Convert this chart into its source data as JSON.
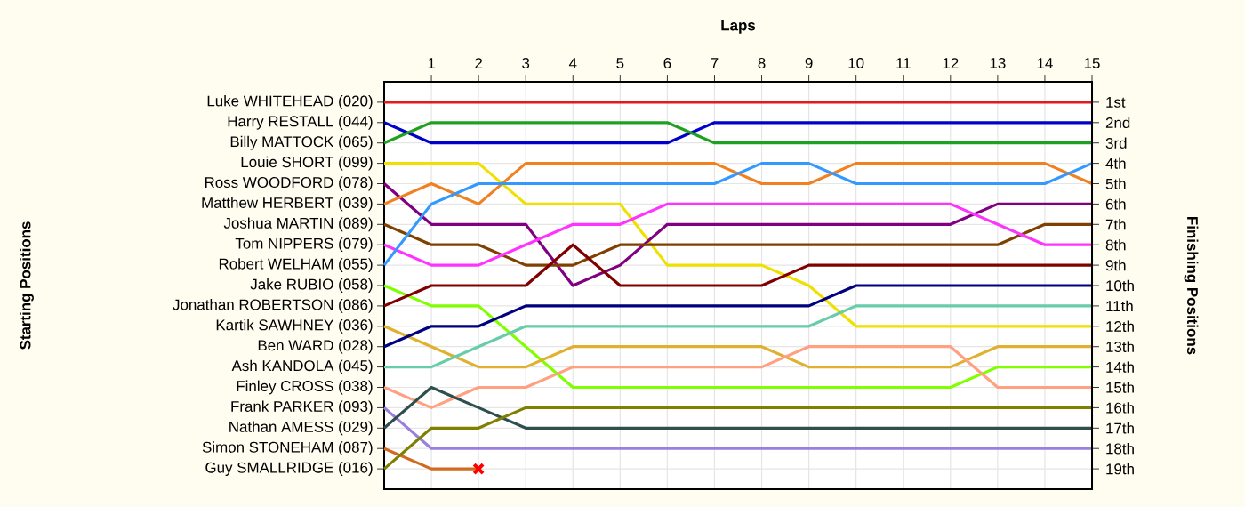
{
  "chart_data": {
    "type": "line",
    "xlabel": "Laps",
    "y2label": "Finishing Positions",
    "x": [
      0,
      1,
      2,
      3,
      4,
      5,
      6,
      7,
      8,
      9,
      10,
      11,
      12,
      13,
      14,
      15
    ],
    "xlim": [
      0,
      15
    ],
    "xticks": [
      1,
      2,
      3,
      4,
      5,
      6,
      7,
      8,
      9,
      10,
      11,
      12,
      13,
      14,
      15
    ],
    "annotations": [
      "Luke WHITEHEAD (020)",
      "Harry RESTALL (044)",
      "Billy MATTOCK (065)",
      "Louie SHORT (099)",
      "Ross WOODFORD (078)",
      "Matthew HERBERT (039)",
      "Joshua MARTIN (089)",
      "Tom NIPPERS (079)",
      "Robert WELHAM (055)",
      "Jake RUBIO (058)",
      "Jonathan ROBERTSON (086)",
      "Kartik SAWHNEY (036)",
      "Ben WARD (028)",
      "Ash KANDOLA (045)",
      "Finley CROSS (038)",
      "Frank PARKER (093)",
      "Nathan AMESS (029)",
      "Simon STONEHAM (087)",
      "Guy SMALLRIDGE (016)",
      "Starting Positions"
    ],
    "y2lim": [
      20,
      0
    ],
    "y2ticks": [
      {
        "value": 1,
        "label": "1st"
      },
      {
        "value": 2,
        "label": "2nd"
      },
      {
        "value": 3,
        "label": "3rd"
      },
      {
        "value": 4,
        "label": "4th"
      },
      {
        "value": 5,
        "label": "5th"
      },
      {
        "value": 6,
        "label": "6th"
      },
      {
        "value": 7,
        "label": "7th"
      },
      {
        "value": 8,
        "label": "8th"
      },
      {
        "value": 9,
        "label": "9th"
      },
      {
        "value": 10,
        "label": "10th"
      },
      {
        "value": 11,
        "label": "11th"
      },
      {
        "value": 12,
        "label": "12th"
      },
      {
        "value": 13,
        "label": "13th"
      },
      {
        "value": 14,
        "label": "14th"
      },
      {
        "value": 15,
        "label": "15th"
      },
      {
        "value": 16,
        "label": "16th"
      },
      {
        "value": 17,
        "label": "17th"
      },
      {
        "value": 18,
        "label": "18th"
      },
      {
        "value": 19,
        "label": "19th"
      }
    ],
    "grid": true,
    "marker": "none",
    "line_style": "solid",
    "series": [
      {
        "axis": "y2",
        "color": "#e31a1c",
        "values": [
          1,
          1,
          1,
          1,
          1,
          1,
          1,
          1,
          1,
          1,
          1,
          1,
          1,
          1,
          1,
          1
        ]
      },
      {
        "axis": "y2",
        "color": "#0000cc",
        "values": [
          2,
          3,
          3,
          3,
          3,
          3,
          3,
          2,
          2,
          2,
          2,
          2,
          2,
          2,
          2,
          2
        ]
      },
      {
        "axis": "y2",
        "color": "#20a020",
        "values": [
          3,
          2,
          2,
          2,
          2,
          2,
          2,
          3,
          3,
          3,
          3,
          3,
          3,
          3,
          3,
          3
        ]
      },
      {
        "axis": "y2",
        "color": "#f0e000",
        "values": [
          4,
          4,
          4,
          6,
          6,
          6,
          9,
          9,
          9,
          10,
          12,
          12,
          12,
          12,
          12,
          12
        ]
      },
      {
        "axis": "y2",
        "color": "#800080",
        "values": [
          5,
          7,
          7,
          7,
          10,
          9,
          7,
          7,
          7,
          7,
          7,
          7,
          7,
          6,
          6,
          6
        ]
      },
      {
        "axis": "y2",
        "color": "#f08020",
        "values": [
          6,
          5,
          6,
          4,
          4,
          4,
          4,
          4,
          5,
          5,
          4,
          4,
          4,
          4,
          4,
          5
        ]
      },
      {
        "axis": "y2",
        "color": "#804000",
        "values": [
          7,
          8,
          8,
          9,
          9,
          8,
          8,
          8,
          8,
          8,
          8,
          8,
          8,
          8,
          7,
          7
        ]
      },
      {
        "axis": "y2",
        "color": "#ff33ff",
        "values": [
          8,
          9,
          9,
          8,
          7,
          7,
          6,
          6,
          6,
          6,
          6,
          6,
          6,
          7,
          8,
          8
        ]
      },
      {
        "axis": "y2",
        "color": "#3399ff",
        "values": [
          9,
          6,
          5,
          5,
          5,
          5,
          5,
          5,
          4,
          4,
          5,
          5,
          5,
          5,
          5,
          4
        ]
      },
      {
        "axis": "y2",
        "color": "#80ff00",
        "values": [
          10,
          11,
          11,
          13,
          15,
          15,
          15,
          15,
          15,
          15,
          15,
          15,
          15,
          14,
          14,
          14
        ]
      },
      {
        "axis": "y2",
        "color": "#800000",
        "values": [
          11,
          10,
          10,
          10,
          8,
          10,
          10,
          10,
          10,
          9,
          9,
          9,
          9,
          9,
          9,
          9
        ]
      },
      {
        "axis": "y2",
        "color": "#e0b030",
        "values": [
          12,
          13,
          14,
          14,
          13,
          13,
          13,
          13,
          13,
          14,
          14,
          14,
          14,
          13,
          13,
          13
        ]
      },
      {
        "axis": "y2",
        "color": "#000080",
        "values": [
          13,
          12,
          12,
          11,
          11,
          11,
          11,
          11,
          11,
          11,
          10,
          10,
          10,
          10,
          10,
          10
        ]
      },
      {
        "axis": "y2",
        "color": "#66ccaa",
        "values": [
          14,
          14,
          13,
          12,
          12,
          12,
          12,
          12,
          12,
          12,
          11,
          11,
          11,
          11,
          11,
          11
        ]
      },
      {
        "axis": "y2",
        "color": "#ffa080",
        "values": [
          15,
          16,
          15,
          15,
          14,
          14,
          14,
          14,
          14,
          13,
          13,
          13,
          13,
          15,
          15,
          15
        ]
      },
      {
        "axis": "y2",
        "color": "#9980dd",
        "values": [
          16,
          18,
          18,
          18,
          18,
          18,
          18,
          18,
          18,
          18,
          18,
          18,
          18,
          18,
          18,
          18
        ]
      },
      {
        "axis": "y2",
        "color": "#2f4f4f",
        "values": [
          17,
          15,
          16,
          17,
          17,
          17,
          17,
          17,
          17,
          17,
          17,
          17,
          17,
          17,
          17,
          17
        ]
      },
      {
        "axis": "y2",
        "color": "#d2691e",
        "values": [
          18,
          19,
          19,
          null,
          null,
          null,
          null,
          null,
          null,
          null,
          null,
          null,
          null,
          null,
          null,
          null
        ]
      },
      {
        "axis": "y2",
        "color": "#808000",
        "values": [
          19,
          17,
          17,
          16,
          16,
          16,
          16,
          16,
          16,
          16,
          16,
          16,
          16,
          16,
          16,
          16
        ]
      },
      {
        "axis": "y2",
        "type": "scatter",
        "marker": "cross",
        "color": "#ff0000",
        "x": [
          2
        ],
        "values": [
          19
        ]
      }
    ]
  }
}
